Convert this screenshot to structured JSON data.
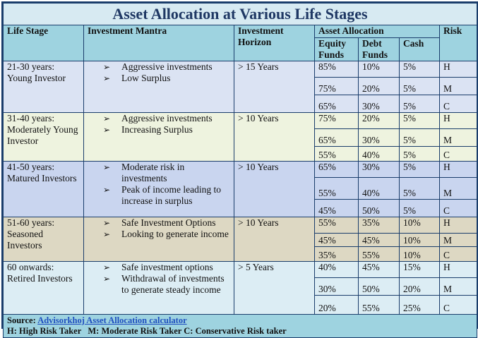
{
  "title": "Asset Allocation at Various Life Stages",
  "headers": {
    "life_stage": "Life Stage",
    "mantra": "Investment Mantra",
    "horizon": "Investment Horizon",
    "allocation": "Asset Allocation",
    "equity": "Equity Funds",
    "debt": "Debt Funds",
    "cash": "Cash",
    "risk": "Risk"
  },
  "stages": [
    {
      "stage": "21-30 years: Young Investor",
      "mantra": [
        "Aggressive investments",
        "Low Surplus"
      ],
      "horizon": "> 15 Years",
      "rows": [
        {
          "equity": "85%",
          "debt": "10%",
          "cash": "5%",
          "risk": "H"
        },
        {
          "equity": "75%",
          "debt": "20%",
          "cash": "5%",
          "risk": "M"
        },
        {
          "equity": "65%",
          "debt": "30%",
          "cash": "5%",
          "risk": "C"
        }
      ]
    },
    {
      "stage": "31-40 years: Moderately Young Investor",
      "mantra": [
        "Aggressive investments",
        "Increasing Surplus"
      ],
      "horizon": "> 10 Years",
      "rows": [
        {
          "equity": "75%",
          "debt": "20%",
          "cash": "5%",
          "risk": "H"
        },
        {
          "equity": "65%",
          "debt": "30%",
          "cash": "5%",
          "risk": "M"
        },
        {
          "equity": "55%",
          "debt": "40%",
          "cash": "5%",
          "risk": "C"
        }
      ]
    },
    {
      "stage": "41-50 years: Matured Investors",
      "mantra": [
        "Moderate risk in investments",
        "Peak of income leading to increase in surplus"
      ],
      "horizon": "> 10 Years",
      "rows": [
        {
          "equity": "65%",
          "debt": "30%",
          "cash": "5%",
          "risk": "H"
        },
        {
          "equity": "55%",
          "debt": "40%",
          "cash": "5%",
          "risk": "M"
        },
        {
          "equity": "45%",
          "debt": "50%",
          "cash": "5%",
          "risk": "C"
        }
      ]
    },
    {
      "stage": "51-60 years: Seasoned Investors",
      "mantra": [
        "Safe Investment Options",
        "Looking to generate income"
      ],
      "horizon": "> 10 Years",
      "rows": [
        {
          "equity": "55%",
          "debt": "35%",
          "cash": "10%",
          "risk": "H"
        },
        {
          "equity": "45%",
          "debt": "45%",
          "cash": "10%",
          "risk": "M"
        },
        {
          "equity": "35%",
          "debt": "55%",
          "cash": "10%",
          "risk": "C"
        }
      ]
    },
    {
      "stage": "60 onwards: Retired Investors",
      "mantra": [
        "Safe investment options",
        "Withdrawal of investments to generate steady income"
      ],
      "horizon": "> 5 Years",
      "rows": [
        {
          "equity": "40%",
          "debt": "45%",
          "cash": "15%",
          "risk": "H"
        },
        {
          "equity": "30%",
          "debt": "50%",
          "cash": "20%",
          "risk": "M"
        },
        {
          "equity": "20%",
          "debt": "55%",
          "cash": "25%",
          "risk": "C"
        }
      ]
    }
  ],
  "footer": {
    "source_label": "Source:",
    "source_link": "Advisorkhoj Asset Allocation calculator",
    "legend": "H: High Risk Taker   M: Moderate Risk Taker C: Conservative Risk taker"
  },
  "arrow_glyph": "➢"
}
